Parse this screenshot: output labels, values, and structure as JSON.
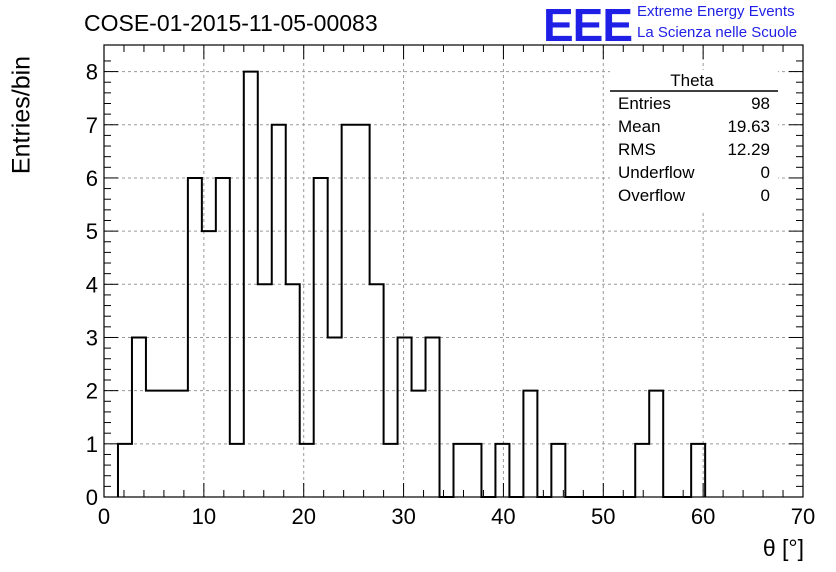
{
  "chart_data": {
    "type": "bar",
    "title": "COSE-01-2015-11-05-00083",
    "xlabel": "θ [°]",
    "ylabel": "Entries/bin",
    "xlim": [
      0,
      70
    ],
    "ylim": [
      0,
      8.5
    ],
    "xticks": [
      "0",
      "10",
      "20",
      "30",
      "40",
      "50",
      "60",
      "70"
    ],
    "yticks": [
      "0",
      "1",
      "2",
      "3",
      "4",
      "5",
      "6",
      "7",
      "8"
    ],
    "grid": true,
    "bin_width": 1.4,
    "bin_edges_start": 1.4,
    "values": [
      1,
      3,
      2,
      2,
      2,
      6,
      5,
      6,
      1,
      8,
      4,
      7,
      4,
      1,
      6,
      3,
      7,
      7,
      4,
      1,
      3,
      2,
      3,
      0,
      1,
      1,
      0,
      1,
      0,
      2,
      0,
      1,
      0,
      0,
      0,
      0,
      0,
      1,
      2,
      0,
      0,
      1
    ],
    "stats": {
      "name": "Theta",
      "rows": [
        {
          "label": "Entries",
          "value": "98"
        },
        {
          "label": "Mean",
          "value": "19.63"
        },
        {
          "label": "RMS",
          "value": "12.29"
        },
        {
          "label": "Underflow",
          "value": "0"
        },
        {
          "label": "Overflow",
          "value": "0"
        }
      ]
    }
  },
  "logo": {
    "text": "EEE",
    "line1": "Extreme Energy Events",
    "line2": "La Scienza nelle Scuole",
    "color": "#1f1fe6"
  }
}
